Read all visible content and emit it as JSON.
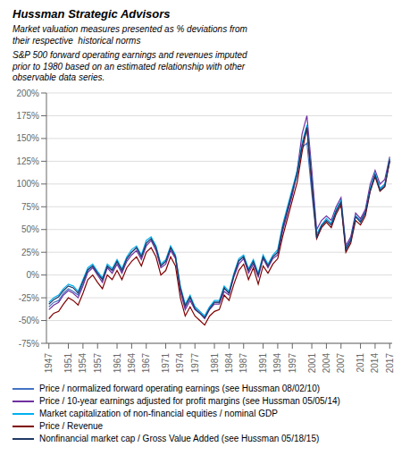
{
  "chart_data": {
    "type": "line",
    "title": "Hussman Strategic Advisors",
    "subtitle": "Market valuation measures presented as % deviations from\ntheir respective  historical norms",
    "annotations": [
      "S&P 500 forward operating earnings and revenues imputed\nprior to 1980 based on an estimated relationship with other\nobservable data series."
    ],
    "x": [
      1947,
      1948,
      1949,
      1950,
      1951,
      1952,
      1953,
      1954,
      1955,
      1956,
      1957,
      1958,
      1959,
      1960,
      1961,
      1962,
      1963,
      1964,
      1965,
      1966,
      1967,
      1968,
      1969,
      1970,
      1971,
      1972,
      1973,
      1974,
      1975,
      1976,
      1977,
      1978,
      1979,
      1980,
      1981,
      1982,
      1983,
      1984,
      1985,
      1986,
      1987,
      1988,
      1989,
      1990,
      1991,
      1992,
      1993,
      1994,
      1995,
      1996,
      1997,
      1998,
      1999,
      2000,
      2001,
      2002,
      2003,
      2004,
      2005,
      2006,
      2007,
      2008,
      2009,
      2010,
      2011,
      2012,
      2013,
      2014,
      2015,
      2016,
      2017
    ],
    "series": [
      {
        "name": "Price / normalized forward operating earnings (see Hussman 08/02/10)",
        "color": "#4472C4",
        "values": [
          -35,
          -30,
          -28,
          -20,
          -15,
          -18,
          -22,
          -10,
          5,
          10,
          2,
          -5,
          10,
          5,
          15,
          5,
          18,
          25,
          30,
          20,
          35,
          40,
          30,
          10,
          15,
          30,
          20,
          -15,
          -35,
          -25,
          -35,
          -40,
          -45,
          -35,
          -30,
          -30,
          -15,
          -20,
          0,
          15,
          20,
          5,
          15,
          0,
          20,
          10,
          20,
          25,
          50,
          70,
          90,
          110,
          140,
          145,
          90,
          40,
          55,
          60,
          55,
          70,
          80,
          30,
          40,
          65,
          60,
          70,
          95,
          110,
          95,
          100,
          125
        ]
      },
      {
        "name": "Price / 10-year earnings adjusted for profit margins (see Hussman 05/05/14)",
        "color": "#7030A0",
        "values": [
          -38,
          -33,
          -30,
          -22,
          -17,
          -20,
          -25,
          -12,
          3,
          8,
          0,
          -8,
          8,
          2,
          12,
          2,
          15,
          22,
          27,
          17,
          32,
          38,
          27,
          8,
          12,
          27,
          18,
          -18,
          -38,
          -28,
          -38,
          -42,
          -48,
          -38,
          -32,
          -32,
          -18,
          -22,
          -2,
          12,
          18,
          2,
          12,
          -2,
          18,
          8,
          18,
          22,
          48,
          68,
          88,
          115,
          155,
          175,
          115,
          50,
          60,
          65,
          60,
          75,
          85,
          32,
          42,
          68,
          62,
          72,
          100,
          115,
          100,
          105,
          130
        ]
      },
      {
        "name": "Market capitalization of non-financial equities / nominal GDP",
        "color": "#00B0F0",
        "values": [
          -30,
          -25,
          -22,
          -15,
          -10,
          -12,
          -18,
          -5,
          8,
          12,
          4,
          -3,
          12,
          7,
          17,
          7,
          20,
          28,
          32,
          22,
          38,
          42,
          32,
          12,
          17,
          32,
          22,
          -12,
          -32,
          -22,
          -35,
          -40,
          -45,
          -35,
          -28,
          -28,
          -12,
          -18,
          2,
          18,
          22,
          7,
          17,
          2,
          22,
          12,
          22,
          28,
          55,
          75,
          95,
          115,
          145,
          165,
          105,
          45,
          55,
          62,
          57,
          72,
          82,
          28,
          38,
          65,
          58,
          68,
          95,
          112,
          95,
          100,
          128
        ]
      },
      {
        "name": "Price / Revenue",
        "color": "#7F0000",
        "values": [
          -48,
          -42,
          -40,
          -32,
          -25,
          -28,
          -33,
          -20,
          -5,
          0,
          -8,
          -15,
          0,
          -5,
          5,
          -5,
          8,
          15,
          20,
          10,
          25,
          30,
          20,
          0,
          5,
          20,
          10,
          -25,
          -45,
          -35,
          -45,
          -50,
          -55,
          -45,
          -40,
          -38,
          -22,
          -28,
          -10,
          5,
          12,
          -5,
          8,
          -10,
          10,
          2,
          12,
          18,
          42,
          62,
          82,
          102,
          135,
          162,
          100,
          40,
          52,
          58,
          52,
          67,
          77,
          25,
          35,
          60,
          55,
          65,
          92,
          108,
          92,
          97,
          125
        ]
      },
      {
        "name": "Nonfinancial market cap / Gross Value Added (see Hussman 05/18/15)",
        "color": "#1F3864",
        "values": [
          -32,
          -27,
          -24,
          -17,
          -12,
          -14,
          -20,
          -7,
          6,
          10,
          2,
          -5,
          10,
          5,
          15,
          5,
          18,
          25,
          30,
          20,
          35,
          40,
          30,
          10,
          15,
          30,
          20,
          -14,
          -34,
          -24,
          -37,
          -42,
          -47,
          -37,
          -30,
          -30,
          -14,
          -20,
          0,
          16,
          20,
          5,
          15,
          0,
          20,
          10,
          20,
          25,
          52,
          72,
          92,
          112,
          142,
          162,
          102,
          42,
          54,
          60,
          55,
          70,
          80,
          28,
          38,
          64,
          58,
          68,
          93,
          110,
          93,
          98,
          127
        ]
      }
    ],
    "xlim": [
      1946.5,
      2017.5
    ],
    "xticks": [
      1947,
      1951,
      1954,
      1957,
      1961,
      1964,
      1967,
      1971,
      1974,
      1977,
      1981,
      1984,
      1987,
      1991,
      1994,
      1997,
      2001,
      2004,
      2007,
      2011,
      2014,
      2017
    ],
    "ylim": [
      -75,
      200
    ],
    "yticks": [
      {
        "value": -75,
        "label": "-75%"
      },
      {
        "value": -50,
        "label": "-50%"
      },
      {
        "value": -25,
        "label": "-25%"
      },
      {
        "value": 0,
        "label": "0%"
      },
      {
        "value": 25,
        "label": "25%"
      },
      {
        "value": 50,
        "label": "50%"
      },
      {
        "value": 75,
        "label": "75%"
      },
      {
        "value": 100,
        "label": "100%"
      },
      {
        "value": 125,
        "label": "125%"
      },
      {
        "value": 150,
        "label": "150%"
      },
      {
        "value": 175,
        "label": "175%"
      },
      {
        "value": 200,
        "label": "200%"
      }
    ],
    "grid": true,
    "legend": "bottom"
  }
}
